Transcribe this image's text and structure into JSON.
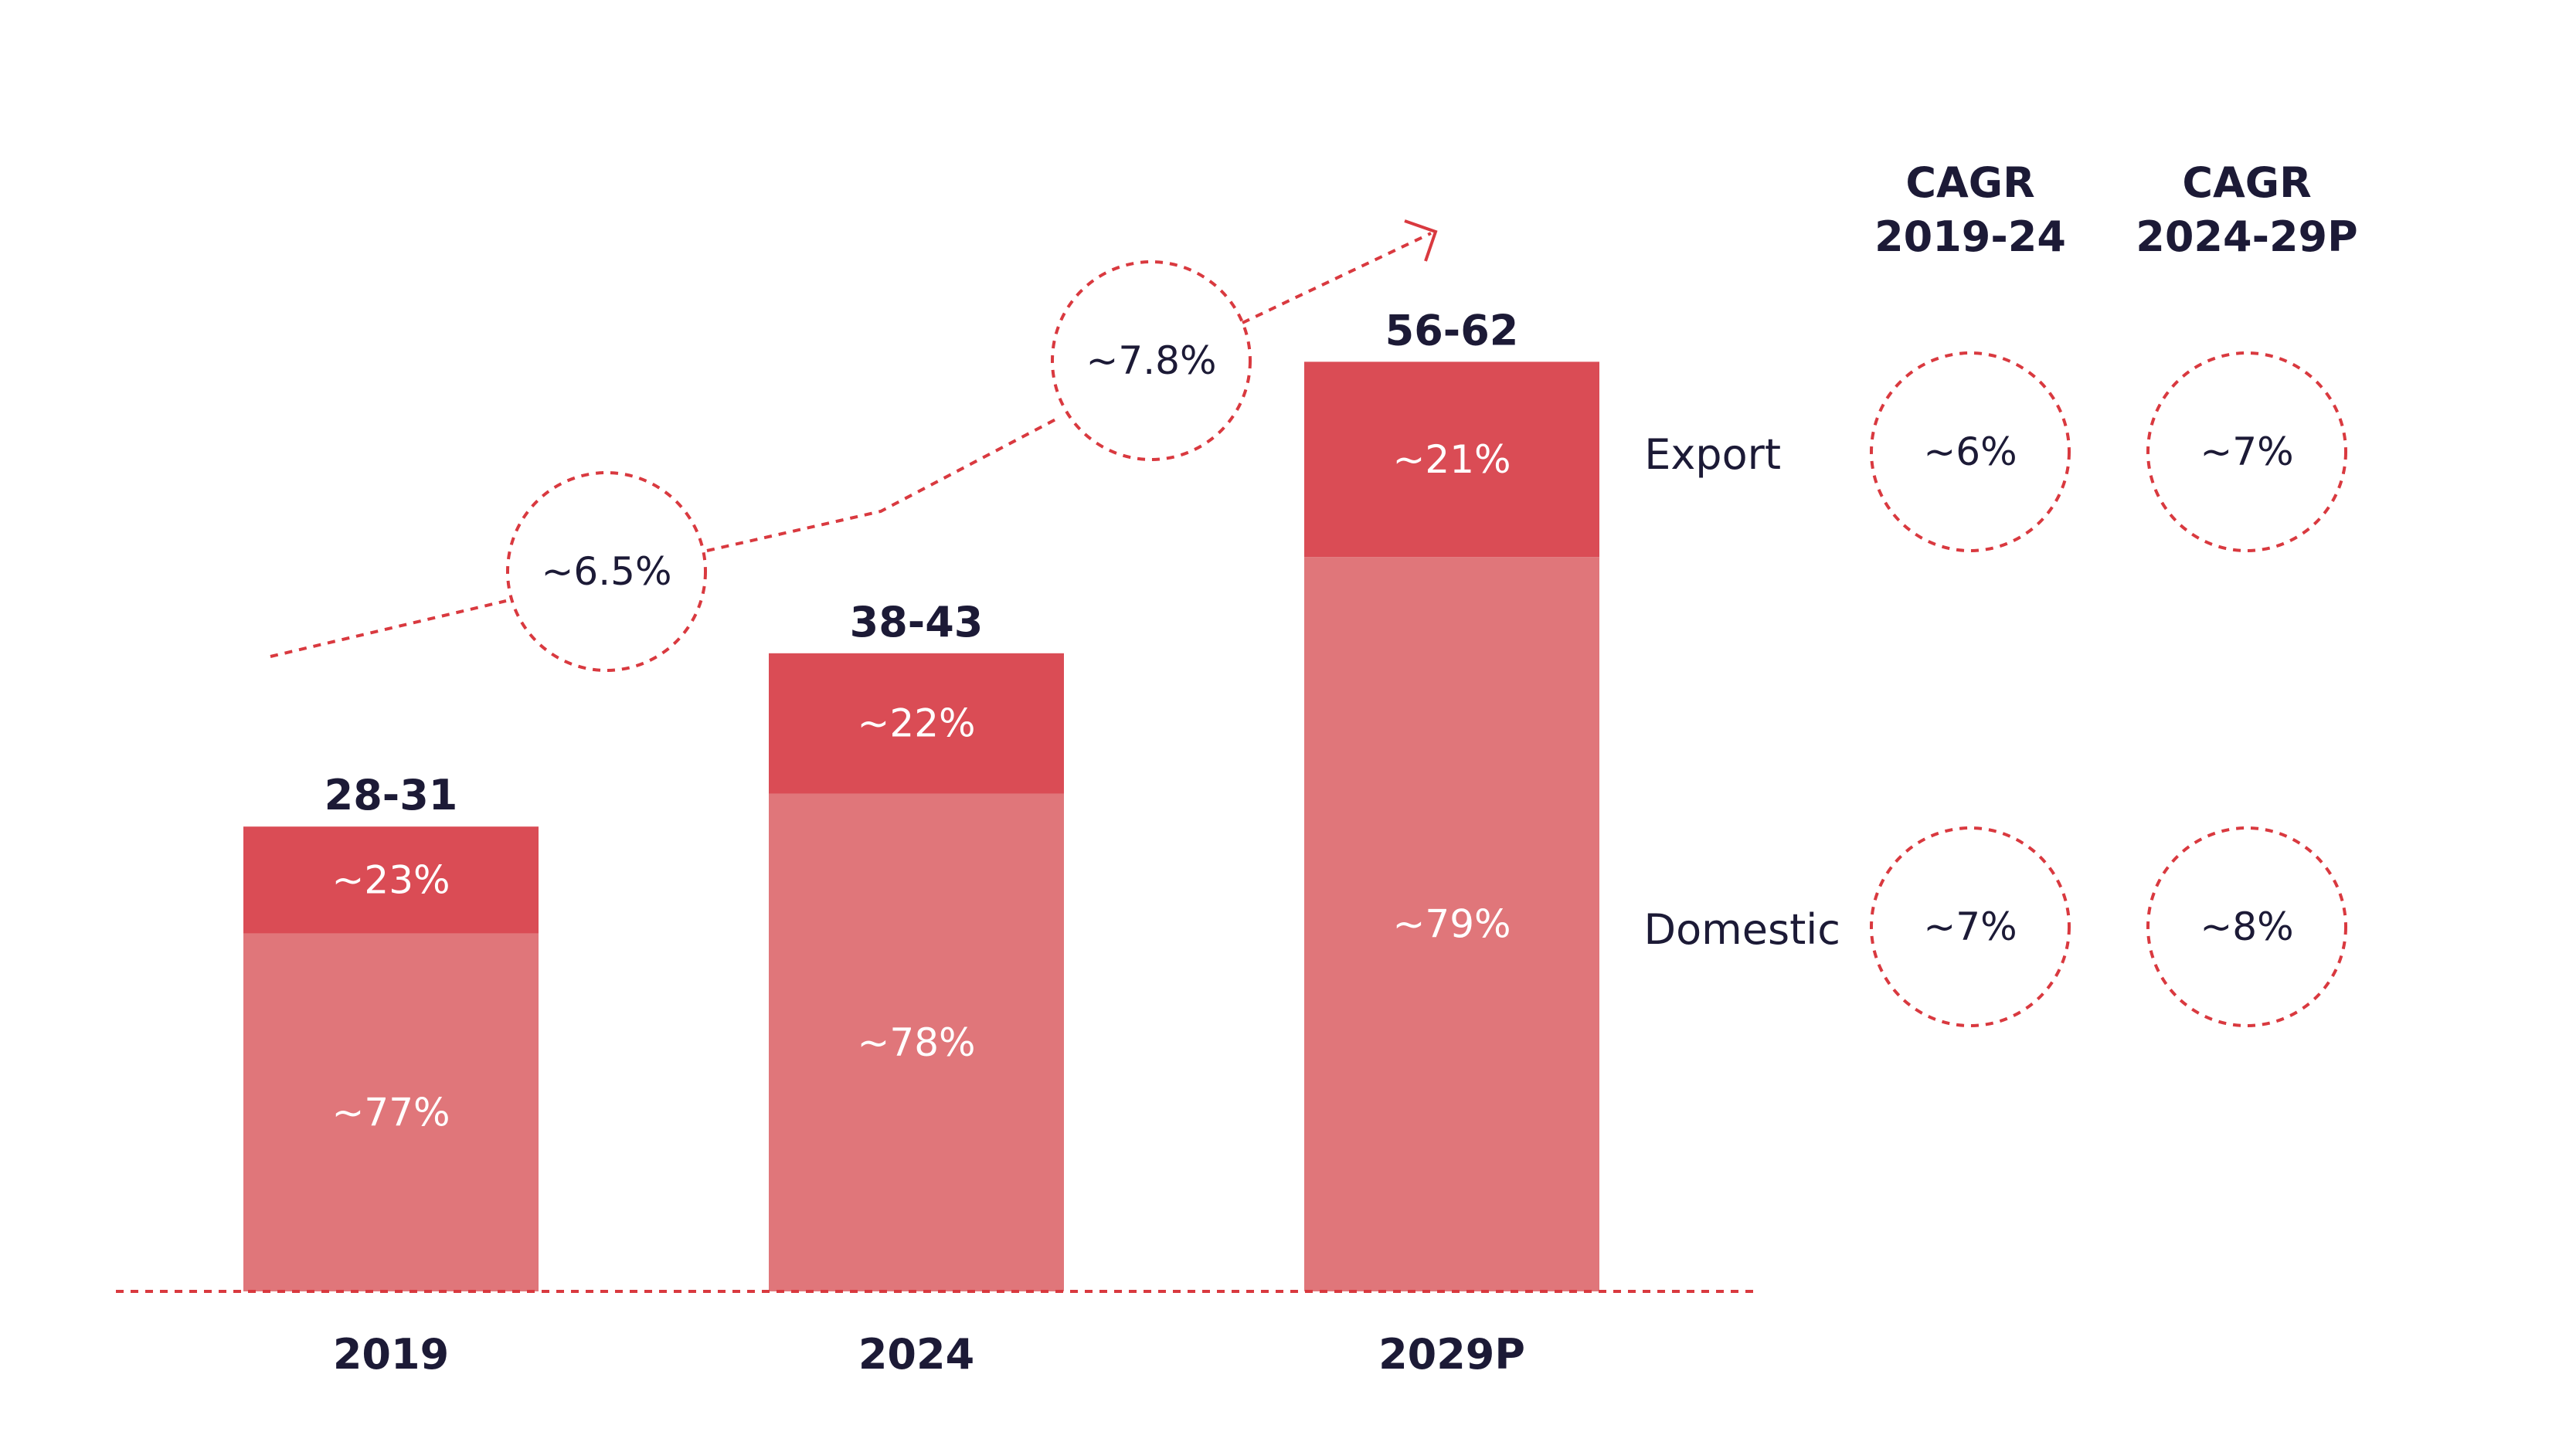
{
  "chart_data": {
    "type": "bar",
    "stacked": true,
    "categories": [
      "2019",
      "2024",
      "2029P"
    ],
    "totals": [
      "28-31",
      "38-43",
      "56-62"
    ],
    "total_midpoints": [
      29.5,
      40.5,
      59
    ],
    "series": [
      {
        "name": "Domestic",
        "values": [
          77,
          78,
          79
        ],
        "labels": [
          "~77%",
          "~78%",
          "~79%"
        ],
        "color": "#e0767a"
      },
      {
        "name": "Export",
        "values": [
          23,
          22,
          21
        ],
        "labels": [
          "~23%",
          "~22%",
          "~21%"
        ],
        "color": "#da4c55"
      }
    ],
    "growth_labels": [
      "~6.5%",
      "~7.8%"
    ],
    "cagr_table": {
      "headers": [
        {
          "line1": "CAGR",
          "line2": "2019-24"
        },
        {
          "line1": "CAGR",
          "line2": "2024-29P"
        }
      ],
      "rows": [
        {
          "label": "Export",
          "values": [
            "~6%",
            "~7%"
          ]
        },
        {
          "label": "Domestic",
          "values": [
            "~7%",
            "~8%"
          ]
        }
      ]
    },
    "accent_color": "#d9393f"
  }
}
